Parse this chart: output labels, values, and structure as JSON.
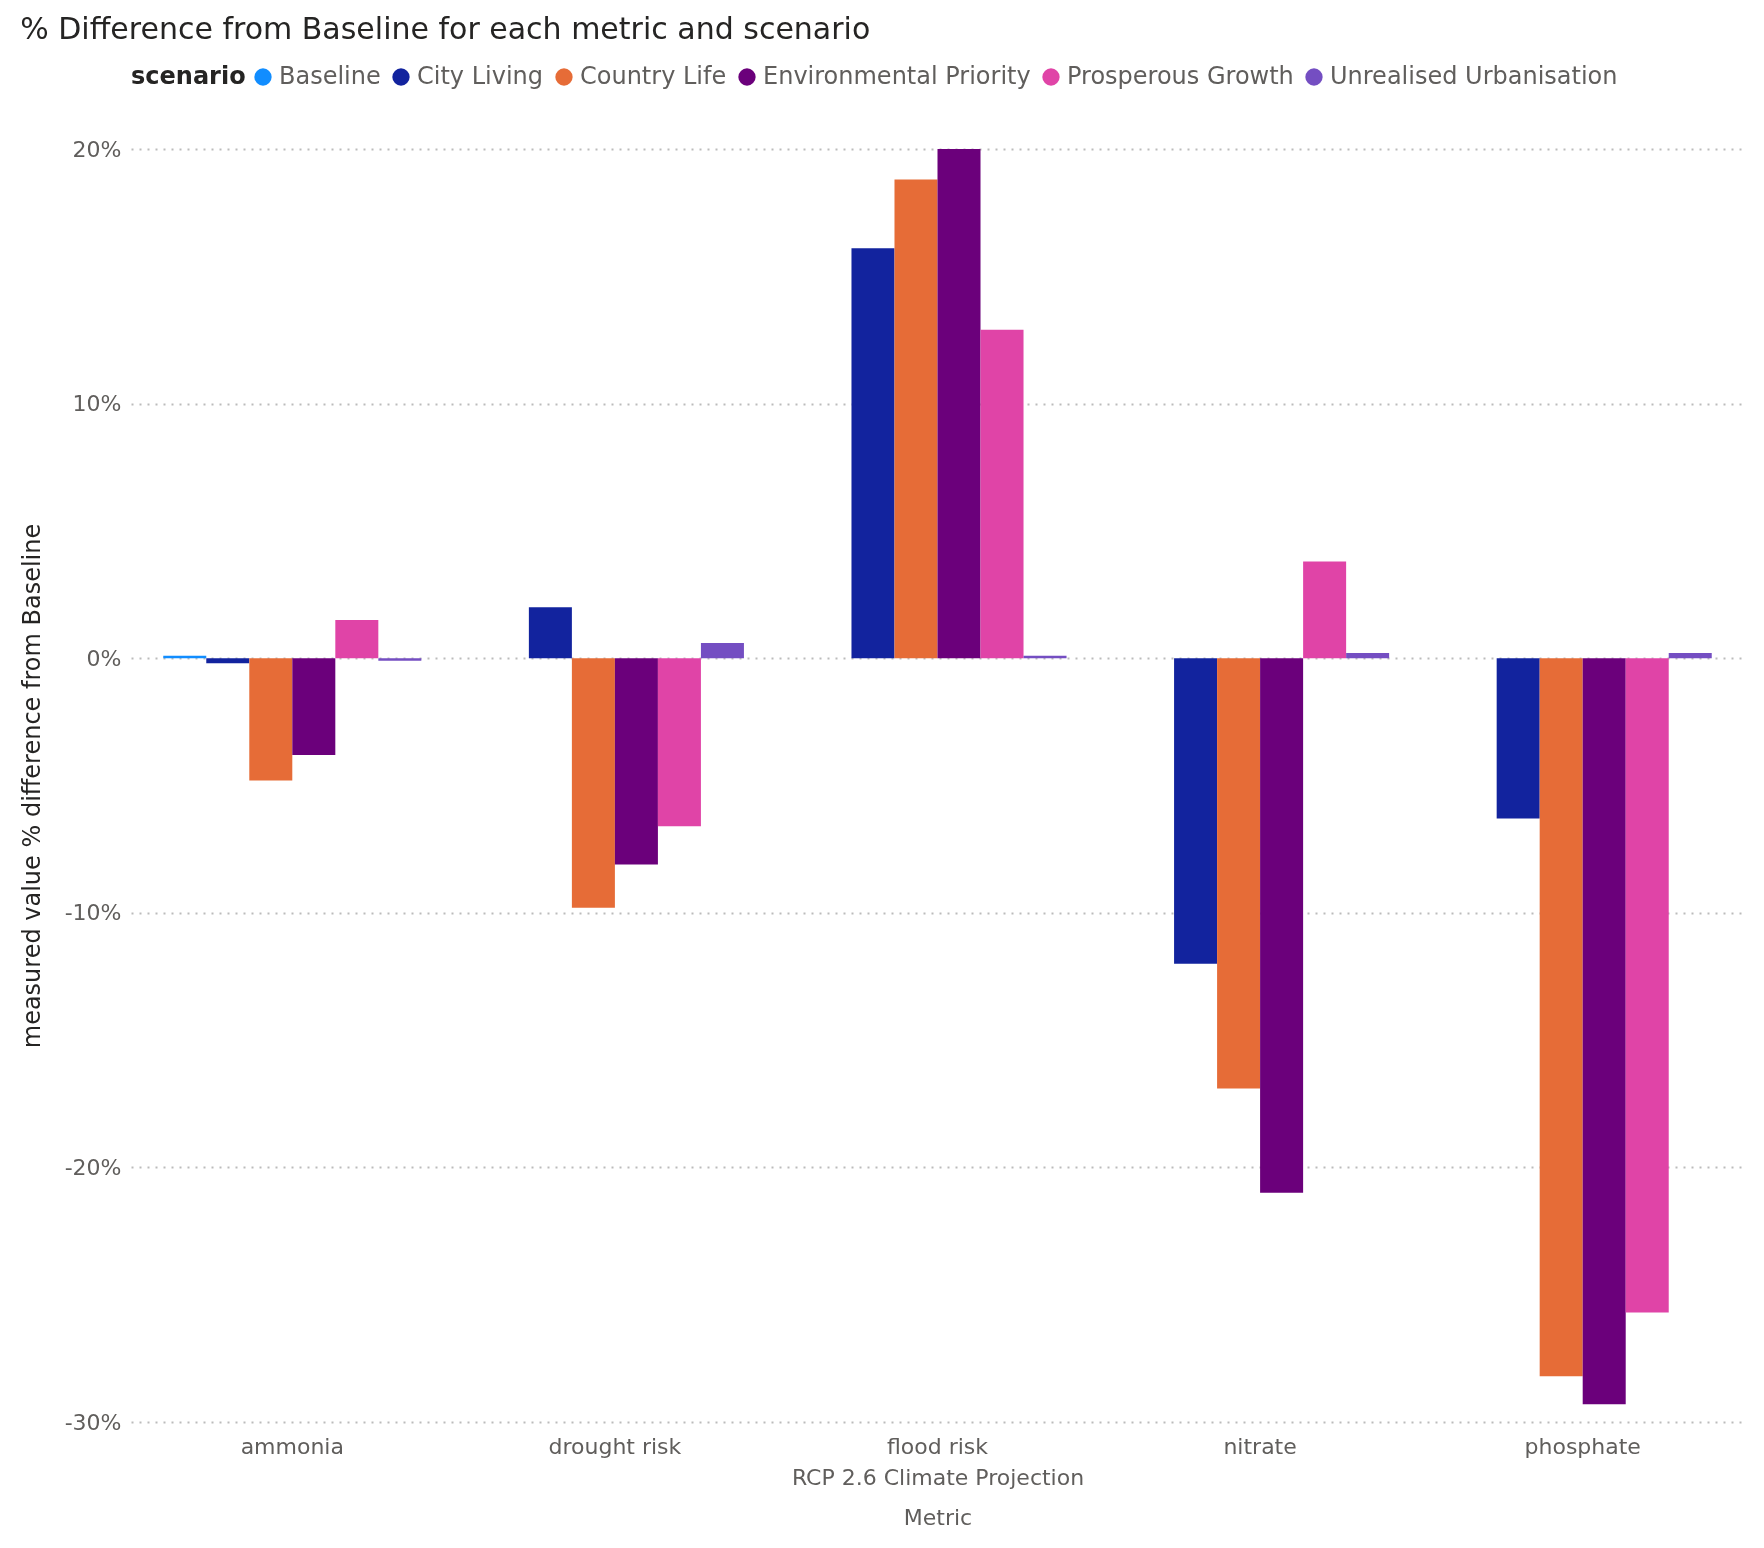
{
  "chart_data": {
    "type": "bar",
    "title": "% Difference from Baseline for each metric and scenario",
    "xlabel": "Metric",
    "ylabel": "measured value % difference from Baseline",
    "legend_title": "scenario",
    "legend": "top left",
    "grid": "y",
    "annotations": [
      "RCP 2.6 Climate Projection"
    ],
    "categories": [
      "ammonia",
      "drought risk",
      "flood risk",
      "nitrate",
      "phosphate"
    ],
    "ylim": [
      -30,
      20
    ],
    "yticks": [
      {
        "value": -30,
        "label": "-30%"
      },
      {
        "value": -20,
        "label": "-20%"
      },
      {
        "value": -10,
        "label": "-10%"
      },
      {
        "value": 0,
        "label": "0%"
      },
      {
        "value": 10,
        "label": "10%"
      },
      {
        "value": 20,
        "label": "20%"
      }
    ],
    "series": [
      {
        "name": "Baseline",
        "color": "#118dff",
        "values": [
          0.1,
          0,
          0,
          0,
          0
        ]
      },
      {
        "name": "City Living",
        "color": "#12239e",
        "values": [
          -0.2,
          2.0,
          16.1,
          -12.0,
          -6.3
        ]
      },
      {
        "name": "Country Life",
        "color": "#e66c37",
        "values": [
          -4.8,
          -9.8,
          18.8,
          -16.9,
          -28.2
        ]
      },
      {
        "name": "Environmental Priority",
        "color": "#6b007b",
        "values": [
          -3.8,
          -8.1,
          20.0,
          -21.0,
          -29.3
        ]
      },
      {
        "name": "Prosperous Growth",
        "color": "#e044a7",
        "values": [
          1.5,
          -6.6,
          12.9,
          3.8,
          -25.7
        ]
      },
      {
        "name": "Unrealised Urbanisation",
        "color": "#744ec2",
        "values": [
          -0.1,
          0.6,
          0.1,
          0.2,
          0.2
        ]
      }
    ]
  }
}
